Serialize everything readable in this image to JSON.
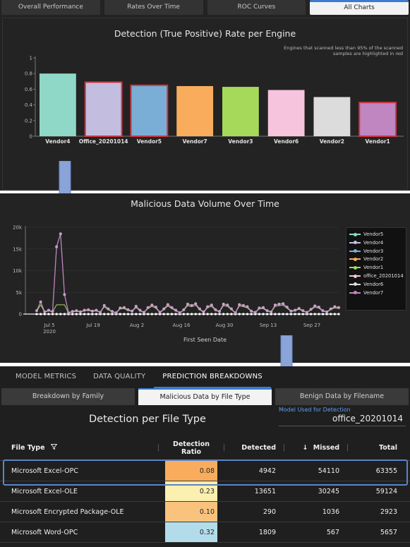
{
  "panel1": {
    "tabs": [
      "Overall Performance",
      "Rates Over Time",
      "ROC Curves",
      "All Charts"
    ],
    "active_tab": 3,
    "chart_data": {
      "type": "bar",
      "title": "Detection (True Positive) Rate per Engine",
      "categories": [
        "Vendor4",
        "Office_20201014",
        "Vendor5",
        "Vendor7",
        "Vendor3",
        "Vendor6",
        "Vendor2",
        "Vendor1"
      ],
      "values": [
        0.8,
        0.69,
        0.65,
        0.64,
        0.63,
        0.59,
        0.5,
        0.43
      ],
      "colors": [
        "#8fd8c8",
        "#c3bde0",
        "#7aaed6",
        "#f9ad5c",
        "#a6d95a",
        "#f7c4dd",
        "#dcdcdc",
        "#bf86c2"
      ],
      "highlighted_red": [
        1,
        2,
        7
      ],
      "ylim": [
        0,
        1
      ],
      "yticks": [
        "0",
        "0.2",
        "0.4",
        "0.6",
        "0.8",
        "1"
      ],
      "note": "Engines that scanned less than 95% of the scanned samples are highlighted in red"
    }
  },
  "panel2": {
    "chart_data": {
      "type": "line",
      "title": "Malicious Data Volume Over Time",
      "xlabel": "First Seen Date",
      "ylabel": "",
      "yticks": [
        "0",
        "5k",
        "10k",
        "15k",
        "20k"
      ],
      "ylim": [
        0,
        20000
      ],
      "xticks": [
        "Jul 5\n2020",
        "Jul 19",
        "Aug 2",
        "Aug 16",
        "Aug 30",
        "Sep 13",
        "Sep 27"
      ],
      "legend_position": "right",
      "series": [
        {
          "name": "Vendor5",
          "color": "#8fd8c8"
        },
        {
          "name": "Vendor4",
          "color": "#c3bde0"
        },
        {
          "name": "Vendor3",
          "color": "#7aaed6"
        },
        {
          "name": "Vendor2",
          "color": "#f9ad5c"
        },
        {
          "name": "Vendor1",
          "color": "#a6d95a"
        },
        {
          "name": "office_20201014",
          "color": "#f7c4dd"
        },
        {
          "name": "Vendor6",
          "color": "#dcdcdc"
        },
        {
          "name": "Vendor7",
          "color": "#bf86c2"
        }
      ],
      "main_series_values": [
        800,
        2800,
        500,
        900,
        600,
        15500,
        18500,
        4500,
        300,
        600,
        800,
        500,
        900,
        1000,
        700,
        900,
        400,
        2000,
        1200,
        600,
        300,
        1400,
        1500,
        1000,
        700,
        1800,
        900,
        400,
        1500,
        2100,
        1600,
        400,
        1200,
        2200,
        1500,
        900,
        300,
        1000,
        2300,
        2000,
        2400,
        1200,
        500,
        1700,
        2100,
        1000,
        600,
        2300,
        2100,
        1200,
        300,
        2200,
        2000,
        1700,
        700,
        400,
        1400,
        1500,
        800,
        500,
        2100,
        2300,
        2400,
        1600,
        700,
        900,
        1300,
        800,
        400,
        1100,
        1900,
        1600,
        800,
        500,
        1200,
        1700,
        1500
      ]
    }
  },
  "panel3": {
    "main_tabs": [
      "MODEL METRICS",
      "DATA QUALITY",
      "PREDICTION BREAKDOWNS"
    ],
    "active_main_tab": 2,
    "sub_tabs": [
      "Breakdown by Family",
      "Malicious Data by File Type",
      "Benign Data by Filename"
    ],
    "active_sub_tab": 1,
    "title": "Detection per File Type",
    "model_label": "Model Used for Detection",
    "model_value": "office_20201014",
    "columns": {
      "file_type": "File Type",
      "ratio_line1": "Detection",
      "ratio_line2": "Ratio",
      "detected": "Detected",
      "missed": "Missed",
      "total": "Total"
    },
    "rows": [
      {
        "type": "Microsoft Excel-OPC",
        "ratio": "0.08",
        "ratio_color": "#f9ad5c",
        "detected": "4942",
        "missed": "54110",
        "total": "63355"
      },
      {
        "type": "Microsoft Excel-OLE",
        "ratio": "0.23",
        "ratio_color": "#fbf0b0",
        "detected": "13651",
        "missed": "30245",
        "total": "59124"
      },
      {
        "type": "Microsoft Encrypted Package-OLE",
        "ratio": "0.10",
        "ratio_color": "#f9c37e",
        "detected": "290",
        "missed": "1036",
        "total": "2923"
      },
      {
        "type": "Microsoft Word-OPC",
        "ratio": "0.32",
        "ratio_color": "#b3dcea",
        "detected": "1809",
        "missed": "567",
        "total": "5657"
      }
    ]
  }
}
